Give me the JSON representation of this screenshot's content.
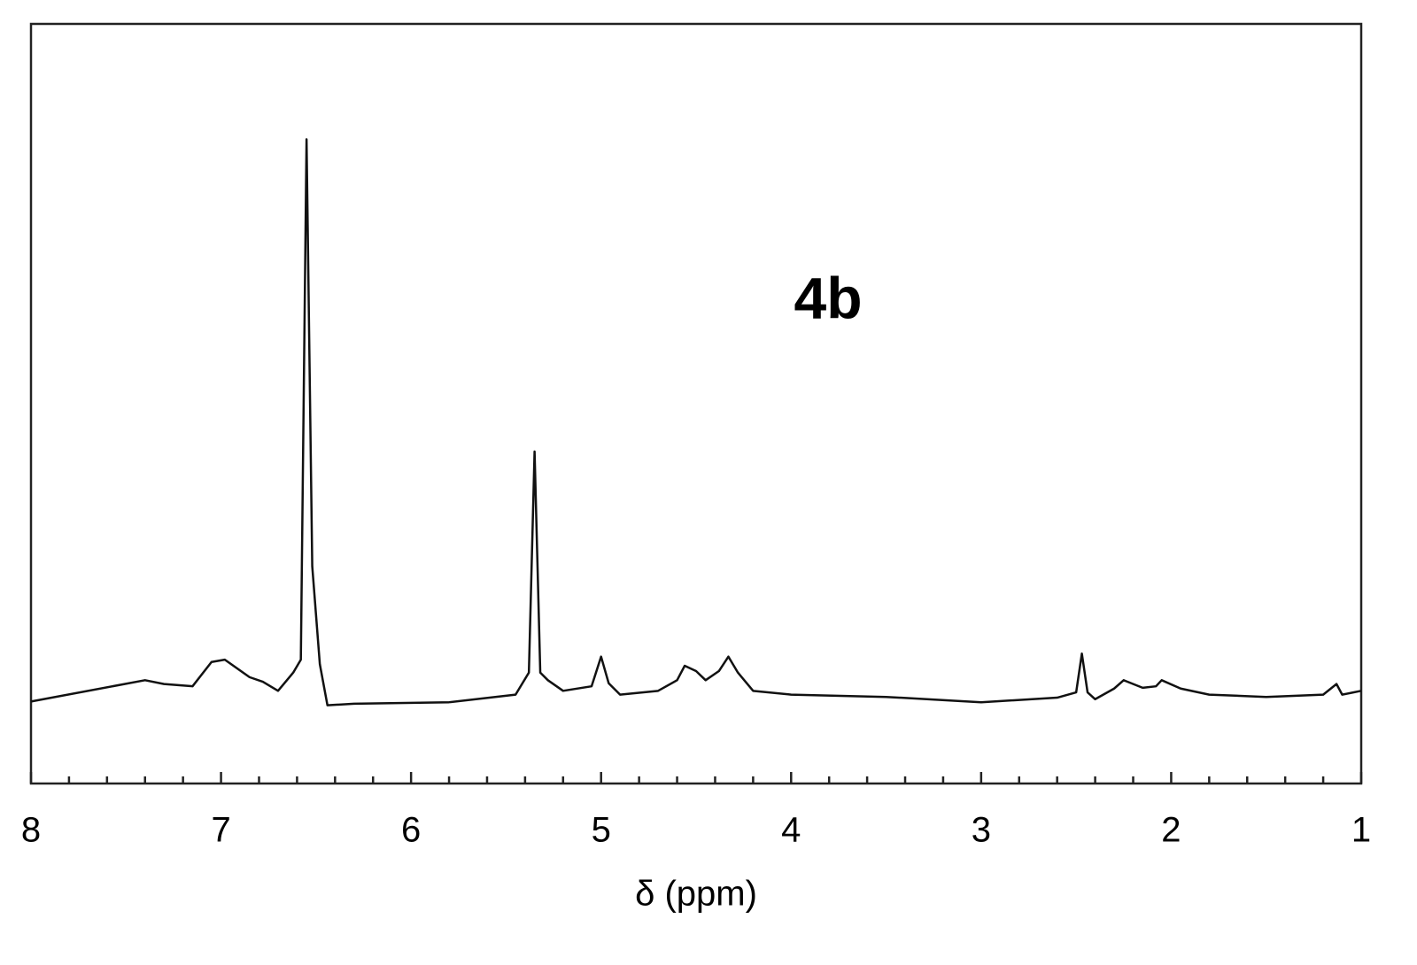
{
  "chart_data": {
    "type": "line",
    "annotation": "4b",
    "x_label": "δ (ppm)",
    "xlim": [
      8,
      1
    ],
    "ylim": [
      0,
      100
    ],
    "xticks": [
      8,
      7,
      6,
      5,
      4,
      3,
      2,
      1
    ],
    "xminorticks": [
      7.8,
      7.6,
      7.4,
      7.2,
      6.8,
      6.6,
      6.4,
      6.2,
      5.8,
      5.6,
      5.4,
      5.2,
      4.8,
      4.6,
      4.4,
      4.2,
      3.8,
      3.6,
      3.4,
      3.2,
      2.8,
      2.6,
      2.4,
      2.2,
      1.8,
      1.6,
      1.4,
      1.2
    ],
    "color": "#111111",
    "x": [
      8.0,
      7.4,
      7.3,
      7.15,
      7.05,
      6.98,
      6.85,
      6.78,
      6.7,
      6.62,
      6.58,
      6.55,
      6.52,
      6.48,
      6.44,
      6.3,
      5.8,
      5.45,
      5.38,
      5.35,
      5.32,
      5.28,
      5.2,
      5.05,
      5.0,
      4.96,
      4.9,
      4.7,
      4.6,
      4.56,
      4.5,
      4.45,
      4.38,
      4.33,
      4.28,
      4.2,
      4.0,
      3.5,
      3.0,
      2.6,
      2.5,
      2.47,
      2.44,
      2.4,
      2.3,
      2.25,
      2.15,
      2.08,
      2.05,
      1.95,
      1.8,
      1.5,
      1.2,
      1.13,
      1.1,
      1.0
    ],
    "values": [
      10.8,
      13.6,
      13.1,
      12.8,
      16.0,
      16.3,
      14.0,
      13.4,
      12.2,
      14.6,
      16.3,
      84.8,
      28.6,
      15.7,
      10.3,
      10.5,
      10.7,
      11.7,
      14.6,
      43.7,
      14.6,
      13.6,
      12.2,
      12.8,
      16.7,
      13.2,
      11.7,
      12.2,
      13.6,
      15.5,
      14.8,
      13.6,
      14.8,
      16.7,
      14.6,
      12.2,
      11.7,
      11.4,
      10.7,
      11.3,
      12.0,
      17.1,
      12.0,
      11.1,
      12.5,
      13.6,
      12.6,
      12.8,
      13.6,
      12.5,
      11.7,
      11.4,
      11.7,
      13.1,
      11.7,
      12.2
    ]
  }
}
